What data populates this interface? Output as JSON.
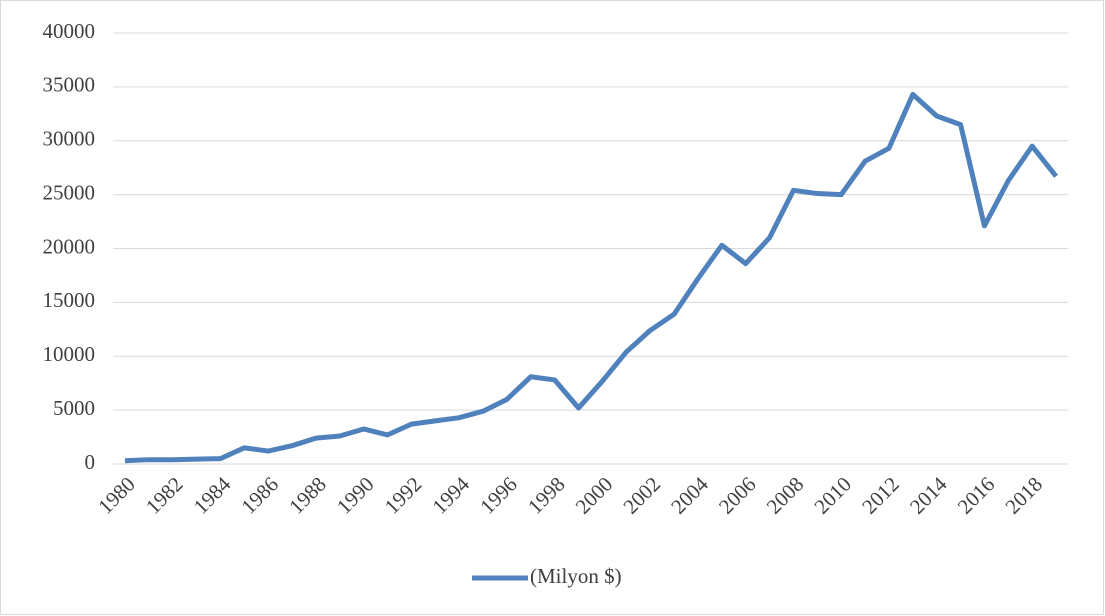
{
  "chart_data": {
    "type": "line",
    "x": [
      1980,
      1981,
      1982,
      1983,
      1984,
      1985,
      1986,
      1987,
      1988,
      1989,
      1990,
      1991,
      1992,
      1993,
      1994,
      1995,
      1996,
      1997,
      1998,
      1999,
      2000,
      2001,
      2002,
      2003,
      2004,
      2005,
      2006,
      2007,
      2008,
      2009,
      2010,
      2011,
      2012,
      2013,
      2014,
      2015,
      2016,
      2017,
      2018,
      2019
    ],
    "series": [
      {
        "name": "(Milyon $)",
        "color": "#4f81bd",
        "values": [
          300,
          400,
          400,
          450,
          500,
          1500,
          1200,
          1700,
          2400,
          2600,
          3250,
          2700,
          3700,
          4000,
          4300,
          4900,
          6000,
          8100,
          7800,
          5200,
          7700,
          10400,
          12400,
          13900,
          17200,
          20300,
          18600,
          21000,
          25400,
          25100,
          25000,
          28100,
          29300,
          34300,
          32300,
          31500,
          22100,
          26300,
          29500,
          26700
        ]
      }
    ],
    "xlim": [
      1979.5,
      2019.5
    ],
    "xticks": [
      1980,
      1982,
      1984,
      1986,
      1988,
      1990,
      1992,
      1994,
      1996,
      1998,
      2000,
      2002,
      2004,
      2006,
      2008,
      2010,
      2012,
      2014,
      2016,
      2018
    ],
    "ylim": [
      0,
      40000
    ],
    "yticks": [
      0,
      5000,
      10000,
      15000,
      20000,
      25000,
      30000,
      35000,
      40000
    ],
    "grid": true,
    "legend": "bottom"
  }
}
